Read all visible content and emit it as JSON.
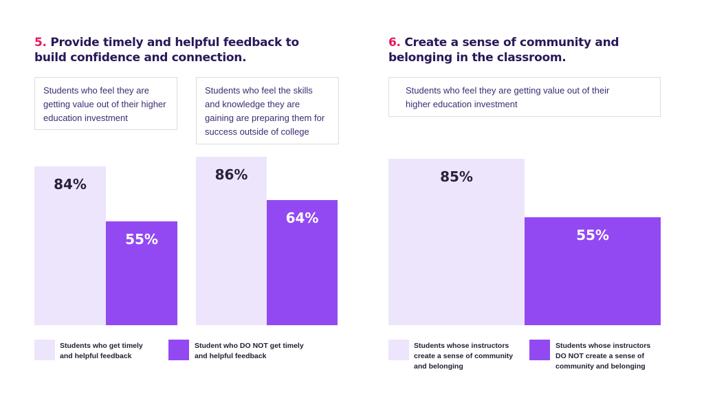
{
  "colors": {
    "light": "#ede5fb",
    "dark": "#9249f2",
    "title": "#2a1858",
    "accent": "#e8175d"
  },
  "section5": {
    "number": "5.",
    "title": "Provide timely and helpful feedback to build confidence and connection."
  },
  "section6": {
    "number": "6.",
    "title": "Create a sense of community and belonging in the classroom."
  },
  "chart_data": [
    {
      "type": "bar",
      "title": "Students who feel they are getting value out of their higher education investment",
      "categories": [
        "Students who get timely and helpful feedback",
        "Student who DO NOT get timely and helpful feedback"
      ],
      "values": [
        84,
        55
      ],
      "labels": [
        "84%",
        "55%"
      ],
      "ylim": [
        0,
        100
      ]
    },
    {
      "type": "bar",
      "title": "Students who feel the skills and knowledge they are gaining are preparing them for success outside of college",
      "categories": [
        "Students who get timely and helpful feedback",
        "Student who DO NOT get timely and helpful feedback"
      ],
      "values": [
        86,
        64
      ],
      "labels": [
        "86%",
        "64%"
      ],
      "ylim": [
        0,
        100
      ]
    },
    {
      "type": "bar",
      "title": "Students who feel they are getting value out of their higher education investment",
      "categories": [
        "Students whose instructors create a sense of community and belonging",
        "Students whose instructors DO NOT create a sense of community and belonging"
      ],
      "values": [
        85,
        55
      ],
      "labels": [
        "85%",
        "55%"
      ],
      "ylim": [
        0,
        100
      ]
    }
  ],
  "legend5": [
    "Students who get timely and helpful feedback",
    "Student who DO NOT get timely and helpful feedback"
  ],
  "legend6": [
    "Students whose instructors create a sense of community and belonging",
    "Students whose instructors DO NOT create a sense of community and belonging"
  ]
}
